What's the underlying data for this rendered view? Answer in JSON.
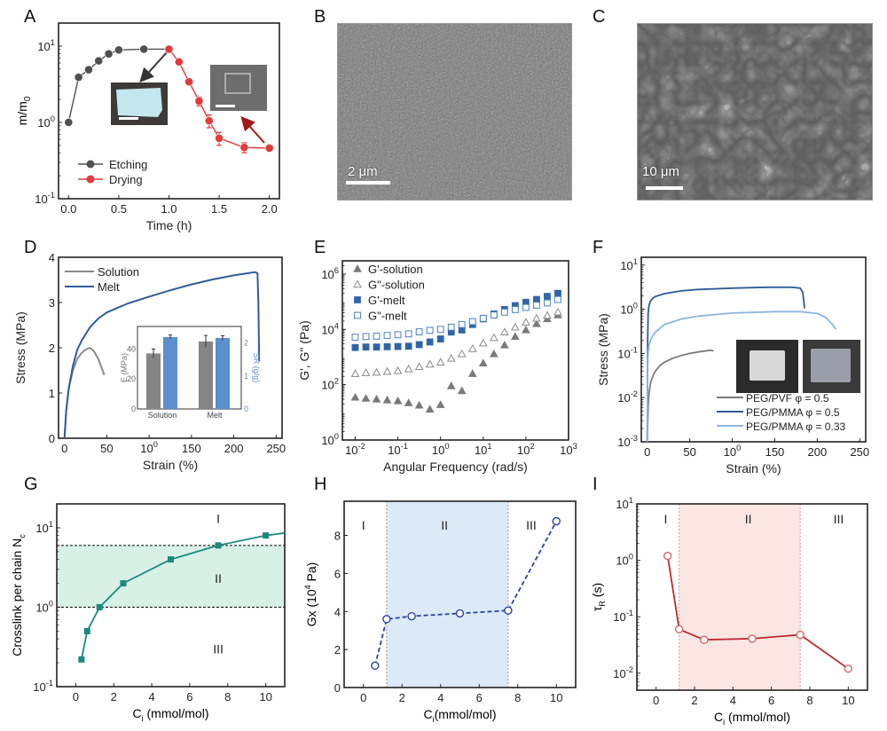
{
  "figure": {
    "panel_letters": [
      "A",
      "B",
      "C",
      "D",
      "E",
      "F",
      "G",
      "H",
      "I"
    ]
  },
  "images": {
    "B": {
      "description": "SEM image, dense rough surface",
      "scale_label": "2 μm",
      "tone": "#7d7d7d"
    },
    "C": {
      "description": "SEM image, porous honeycomb network",
      "scale_label": "10 μm",
      "tone": "#6a6a6a"
    }
  },
  "chart_data": [
    {
      "id": "A",
      "type": "line",
      "xlabel": "Time (h)",
      "ylabel": "m/m0",
      "xlim": [
        -0.1,
        2.1
      ],
      "ylim": [
        0.1,
        20
      ],
      "yscale": "log",
      "xticks": [
        0.0,
        0.5,
        1.0,
        1.5,
        2.0
      ],
      "xtick_labels": [
        "0.0",
        "0.5",
        "1.0",
        "1.5",
        "2.0"
      ],
      "yticks": [
        0.1,
        1,
        10
      ],
      "ytick_labels": [
        "10-1",
        "100",
        "101"
      ],
      "legend": {
        "position": "bottom-left",
        "entries": [
          "Etching",
          "Drying"
        ]
      },
      "series": [
        {
          "name": "Etching",
          "color": "#505050",
          "x": [
            0,
            0.1,
            0.2,
            0.3,
            0.4,
            0.5,
            0.75,
            1.0
          ],
          "y": [
            1.0,
            3.9,
            4.9,
            6.4,
            7.9,
            8.9,
            9.1,
            9.1
          ]
        },
        {
          "name": "Drying",
          "color": "#e03a3a",
          "x": [
            1.0,
            1.1,
            1.2,
            1.3,
            1.4,
            1.5,
            1.75,
            2.0
          ],
          "y": [
            9.1,
            6.2,
            3.4,
            1.9,
            1.05,
            0.62,
            0.47,
            0.46
          ],
          "yerr": [
            0,
            0,
            0.3,
            0.25,
            0.2,
            0.12,
            0.07,
            0
          ]
        }
      ],
      "annotations": [
        "inset photo: etched sample (light blue)",
        "inset photo: dried sample (gray)"
      ]
    },
    {
      "id": "D",
      "type": "line",
      "xlabel": "Strain (%)",
      "ylabel": "Stress (MPa)",
      "xlim": [
        -7,
        257
      ],
      "ylim": [
        0,
        4
      ],
      "xticks": [
        0,
        50,
        100,
        150,
        200,
        250
      ],
      "yticks": [
        0,
        1,
        2,
        3,
        4
      ],
      "legend": {
        "position": "top-left",
        "entries": [
          "Solution",
          "Melt"
        ]
      },
      "series": [
        {
          "name": "Solution",
          "color": "#8a8a8a",
          "x": [
            0,
            2,
            5,
            10,
            15,
            20,
            25,
            30,
            35,
            40,
            45,
            47
          ],
          "y": [
            0,
            0.6,
            1.1,
            1.5,
            1.75,
            1.88,
            1.96,
            2.0,
            1.92,
            1.75,
            1.5,
            1.4
          ]
        },
        {
          "name": "Melt",
          "color": "#2e5d9a",
          "x": [
            0,
            2,
            5,
            10,
            15,
            20,
            30,
            40,
            50,
            75,
            100,
            125,
            150,
            175,
            200,
            225,
            228,
            229,
            230
          ],
          "y": [
            0,
            0.6,
            1.1,
            1.6,
            1.95,
            2.15,
            2.45,
            2.65,
            2.78,
            2.98,
            3.13,
            3.27,
            3.4,
            3.51,
            3.6,
            3.67,
            3.65,
            3.0,
            1.7
          ]
        }
      ],
      "inset": {
        "type": "bar",
        "categories": [
          "Solution",
          "Melt"
        ],
        "ylabel_left": "E (MPa)",
        "ylabel_right": "SR (g/g)",
        "ylim_left": [
          0,
          55
        ],
        "ylim_right": [
          0,
          2.5
        ],
        "left_ticks": [
          0,
          20,
          40
        ],
        "right_ticks": [
          0,
          1,
          2
        ],
        "series": [
          {
            "name": "E",
            "axis": "left",
            "color": "#858585",
            "values": [
              37,
              45
            ],
            "err": [
              3,
              4
            ]
          },
          {
            "name": "SR",
            "axis": "right",
            "color": "#5b8fcf",
            "values": [
              2.18,
              2.15
            ],
            "err": [
              0.06,
              0.07
            ]
          }
        ]
      }
    },
    {
      "id": "E",
      "type": "scatter",
      "xlabel": "Angular Frequency (rad/s)",
      "ylabel": "G', G\" (Pa)",
      "xscale": "log",
      "yscale": "log",
      "xlim": [
        0.005,
        1000
      ],
      "ylim": [
        1,
        3000000
      ],
      "xticks": [
        0.01,
        0.1,
        1,
        10,
        100,
        1000
      ],
      "xtick_labels": [
        "10-2",
        "10-1",
        "100",
        "101",
        "102",
        "103"
      ],
      "yticks": [
        1,
        100,
        10000,
        1000000
      ],
      "ytick_labels": [
        "100",
        "102",
        "104",
        "106"
      ],
      "legend": {
        "position": "top-left",
        "entries": [
          "G'-solution",
          "G\"-solution",
          "G'-melt",
          "G\"-melt"
        ]
      },
      "x": [
        0.01,
        0.0178,
        0.0316,
        0.0562,
        0.1,
        0.178,
        0.316,
        0.562,
        1.0,
        1.78,
        3.16,
        5.62,
        10,
        17.8,
        31.6,
        56.2,
        100,
        178,
        316,
        562
      ],
      "series": [
        {
          "name": "G'-solution",
          "marker": "triangle-filled",
          "color": "#7a7a7a",
          "y": [
            35,
            32,
            30,
            28,
            26,
            22,
            18,
            13,
            19,
            90,
            60,
            250,
            600,
            1300,
            2700,
            5500,
            9500,
            16000,
            24000,
            33000
          ]
        },
        {
          "name": "G\"-solution",
          "marker": "triangle-open",
          "color": "#8a8a8a",
          "y": [
            250,
            270,
            280,
            300,
            320,
            370,
            450,
            550,
            650,
            900,
            1300,
            2000,
            3200,
            5000,
            8000,
            12000,
            18000,
            25000,
            32000,
            42000
          ]
        },
        {
          "name": "G'-melt",
          "marker": "square-filled",
          "color": "#2e64a8",
          "y": [
            2200,
            2300,
            2300,
            2350,
            2400,
            2450,
            2800,
            3500,
            4500,
            8000,
            9500,
            15000,
            24000,
            36000,
            52000,
            72000,
            95000,
            120000,
            155000,
            200000
          ]
        },
        {
          "name": "G\"-melt",
          "marker": "square-open",
          "color": "#4b7fc0",
          "y": [
            5200,
            5500,
            5700,
            6000,
            6400,
            6900,
            8100,
            9200,
            10000,
            12000,
            15000,
            19000,
            25000,
            33000,
            42000,
            52000,
            62000,
            75000,
            90000,
            120000
          ]
        }
      ]
    },
    {
      "id": "F",
      "type": "line",
      "xlabel": "Strain (%)",
      "ylabel": "Stress (MPa)",
      "yscale": "log",
      "xlim": [
        -7,
        257
      ],
      "ylim": [
        0.001,
        15
      ],
      "xticks": [
        0,
        50,
        100,
        150,
        200,
        250
      ],
      "yticks": [
        0.001,
        0.01,
        0.1,
        1,
        10
      ],
      "ytick_labels": [
        "10-3",
        "10-2",
        "10-1",
        "100",
        "101"
      ],
      "legend": {
        "position": "bottom-right",
        "entries": [
          "PEG/PVF φ = 0.5",
          "PEG/PMMA φ = 0.5",
          "PEG/PMMA φ = 0.33"
        ]
      },
      "series": [
        {
          "name": "PEG/PVF φ = 0.5",
          "color": "#7a7a7a",
          "x": [
            0,
            1,
            2,
            4,
            7,
            10,
            15,
            20,
            30,
            40,
            50,
            60,
            70,
            75,
            78
          ],
          "y": [
            0.001,
            0.006,
            0.012,
            0.022,
            0.032,
            0.041,
            0.053,
            0.063,
            0.078,
            0.09,
            0.1,
            0.108,
            0.115,
            0.118,
            0.113
          ]
        },
        {
          "name": "PEG/PMMA φ = 0.5",
          "color": "#2e5d9a",
          "x": [
            0,
            0.5,
            1,
            2,
            4,
            7,
            10,
            20,
            40,
            60,
            100,
            140,
            170,
            180,
            183,
            184,
            185
          ],
          "y": [
            0.001,
            0.2,
            0.8,
            1.2,
            1.55,
            1.8,
            1.95,
            2.25,
            2.6,
            2.8,
            3.0,
            3.15,
            3.15,
            3.0,
            2.4,
            1.6,
            1.05
          ]
        },
        {
          "name": "PEG/PMMA φ = 0.33",
          "color": "#8db4e0",
          "x": [
            0,
            0.5,
            1,
            2,
            4,
            7,
            10,
            20,
            40,
            60,
            100,
            150,
            180,
            200,
            210,
            218,
            222
          ],
          "y": [
            0.001,
            0.05,
            0.1,
            0.15,
            0.2,
            0.26,
            0.31,
            0.45,
            0.6,
            0.7,
            0.82,
            0.88,
            0.88,
            0.8,
            0.65,
            0.45,
            0.35
          ]
        }
      ],
      "annotations": [
        "inset photo: PEG/PVF sample",
        "inset photo: PEG/PMMA sample"
      ]
    },
    {
      "id": "G",
      "type": "line",
      "xlabel": "Ci (mmol/mol)",
      "ylabel": "Crosslink per chain Nc",
      "yscale": "log",
      "xlim": [
        -1,
        11
      ],
      "ylim": [
        0.1,
        20
      ],
      "xticks": [
        0,
        2,
        4,
        6,
        8,
        10
      ],
      "yticks": [
        0.1,
        1,
        10
      ],
      "ytick_labels": [
        "10-1",
        "100",
        "101"
      ],
      "regions": [
        {
          "label": "I",
          "y_range": [
            6,
            20
          ]
        },
        {
          "label": "II",
          "y_range": [
            1,
            6
          ],
          "shaded": true,
          "color": "#d8f1e6"
        },
        {
          "label": "III",
          "y_range": [
            0.1,
            1
          ]
        }
      ],
      "hlines": [
        1,
        6
      ],
      "series": [
        {
          "name": "Nc",
          "color": "#1a8a7d",
          "x": [
            0.3,
            0.6,
            1.25,
            2.5,
            5,
            7.5,
            10,
            11
          ],
          "y": [
            0.22,
            0.5,
            1.0,
            2.0,
            4.0,
            6.0,
            8.0,
            8.6
          ],
          "markers": [
            true,
            true,
            true,
            true,
            true,
            true,
            true,
            false
          ]
        }
      ]
    },
    {
      "id": "H",
      "type": "line",
      "xlabel": "Ci(mmol/mol)",
      "ylabel": "Gx (10^4 Pa)",
      "xlim": [
        -1,
        11
      ],
      "ylim": [
        0,
        9.8
      ],
      "xticks": [
        0,
        2,
        4,
        6,
        8,
        10
      ],
      "yticks": [
        0,
        2,
        4,
        6,
        8
      ],
      "regions": [
        {
          "label": "I",
          "x_range": [
            -1,
            1.2
          ]
        },
        {
          "label": "II",
          "x_range": [
            1.2,
            7.5
          ],
          "shaded": true,
          "color": "#dceaf8"
        },
        {
          "label": "III",
          "x_range": [
            7.5,
            11
          ]
        }
      ],
      "vlines": [
        1.2,
        7.5
      ],
      "series": [
        {
          "name": "Gx",
          "color": "#2b3fa8",
          "style": "dashed",
          "marker": "circle-open",
          "x": [
            0.6,
            1.2,
            2.5,
            5,
            7.5,
            10
          ],
          "y": [
            1.15,
            3.6,
            3.75,
            3.9,
            4.05,
            8.75
          ],
          "yerr": [
            0,
            0.1,
            0.1,
            0.15,
            0.15,
            0.1
          ]
        }
      ]
    },
    {
      "id": "I",
      "type": "line",
      "xlabel": "Ci (mmol/mol)",
      "ylabel": "τR (s)",
      "yscale": "log",
      "xlim": [
        -1,
        11
      ],
      "ylim": [
        0.005,
        10
      ],
      "xticks": [
        0,
        2,
        4,
        6,
        8,
        10
      ],
      "yticks": [
        0.01,
        0.1,
        1,
        10
      ],
      "ytick_labels": [
        "10-2",
        "10-1",
        "100",
        "101"
      ],
      "regions": [
        {
          "label": "I",
          "x_range": [
            -1,
            1.2
          ]
        },
        {
          "label": "II",
          "x_range": [
            1.2,
            7.5
          ],
          "shaded": true,
          "color": "#fce6e4"
        },
        {
          "label": "III",
          "x_range": [
            7.5,
            11
          ]
        }
      ],
      "vlines": [
        1.2,
        7.5
      ],
      "series": [
        {
          "name": "τR",
          "color": "#c0282d",
          "marker": "circle-open",
          "x": [
            0.6,
            1.2,
            2.5,
            5,
            7.5,
            10
          ],
          "y": [
            1.2,
            0.06,
            0.039,
            0.041,
            0.048,
            0.012
          ]
        }
      ]
    }
  ]
}
